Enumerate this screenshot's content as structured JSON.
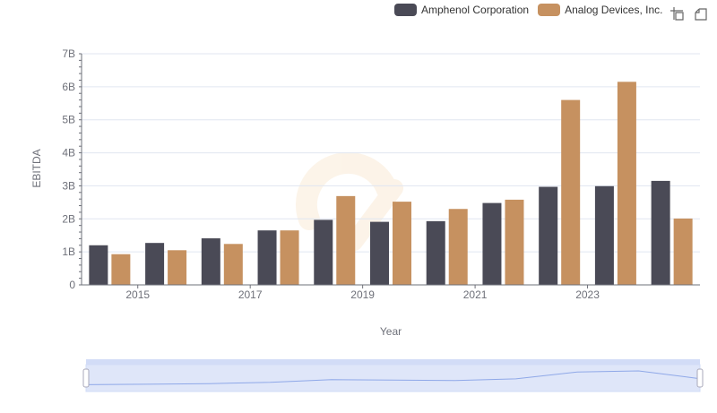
{
  "legend": {
    "series_a": "Amphenol Corporation",
    "series_b": "Analog Devices, Inc."
  },
  "toolbox": [
    "zoom-icon",
    "restore-icon"
  ],
  "colors": {
    "series_a": "#4a4a56",
    "series_b": "#c69160",
    "grid": "#e0e6f1",
    "axis": "#6E7079",
    "slider_fill": "#d2dcf7",
    "slider_line": "#8fa8e8"
  },
  "chart_data": {
    "type": "bar",
    "xlabel": "Year",
    "ylabel": "EBITDA",
    "ylim": [
      0,
      7000000000
    ],
    "yticks": [
      "0",
      "1B",
      "2B",
      "3B",
      "4B",
      "5B",
      "6B",
      "7B"
    ],
    "categories": [
      "2014",
      "2015",
      "2016",
      "2017",
      "2018",
      "2019",
      "2020",
      "2021",
      "2022",
      "2023",
      "2024"
    ],
    "xtick_labels": [
      "2015",
      "2017",
      "2019",
      "2021",
      "2023"
    ],
    "series": [
      {
        "name": "Amphenol Corporation",
        "values": [
          1200000000,
          1270000000,
          1410000000,
          1650000000,
          1970000000,
          1910000000,
          1930000000,
          2480000000,
          2970000000,
          2990000000,
          3150000000
        ]
      },
      {
        "name": "Analog Devices, Inc.",
        "values": [
          930000000,
          1050000000,
          1240000000,
          1650000000,
          2690000000,
          2520000000,
          2300000000,
          2580000000,
          5600000000,
          6150000000,
          2010000000
        ]
      }
    ],
    "grid": true,
    "legend_position": "top-right",
    "zoom_slider": true
  }
}
